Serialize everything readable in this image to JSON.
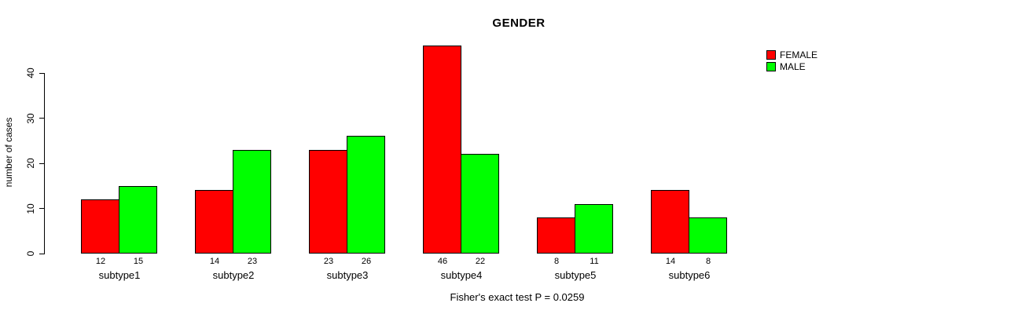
{
  "title": "GENDER",
  "caption": "Fisher's exact test P = 0.0259",
  "legend": {
    "items": [
      {
        "label": "FEMALE",
        "color": "#FF0000"
      },
      {
        "label": "MALE",
        "color": "#00FF00"
      }
    ]
  },
  "chart_data": {
    "type": "bar",
    "title": "GENDER",
    "xlabel": "",
    "ylabel": "number of cases",
    "categories": [
      "subtype1",
      "subtype2",
      "subtype3",
      "subtype4",
      "subtype5",
      "subtype6"
    ],
    "series": [
      {
        "name": "FEMALE",
        "color": "#FF0000",
        "values": [
          12,
          14,
          23,
          46,
          8,
          14
        ]
      },
      {
        "name": "MALE",
        "color": "#00FF00",
        "values": [
          15,
          23,
          26,
          22,
          11,
          8
        ]
      }
    ],
    "yticks": [
      0,
      10,
      20,
      30,
      40
    ],
    "ylim": [
      0,
      48
    ],
    "grid": false,
    "bar_value_labels": true,
    "legend_position": "top-right",
    "annotation": "Fisher's exact test P = 0.0259"
  }
}
